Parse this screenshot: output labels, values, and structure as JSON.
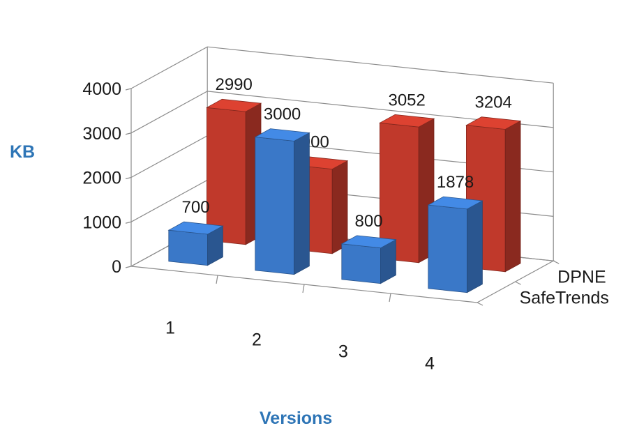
{
  "chart_data": {
    "type": "bar",
    "subtype": "3d-clustered-column",
    "title": "",
    "xlabel": "Versions",
    "ylabel": "KB",
    "categories": [
      "1",
      "2",
      "3",
      "4"
    ],
    "series": [
      {
        "name": "DPNE",
        "values": [
          2990,
          1900,
          3052,
          3204
        ],
        "color": "#c0392b"
      },
      {
        "name": "SafeTrends",
        "values": [
          700,
          3000,
          800,
          1878
        ],
        "color": "#3a78c8"
      }
    ],
    "ylim": [
      0,
      4000
    ],
    "yticks": [
      "0",
      "1000",
      "2000",
      "3000",
      "4000"
    ],
    "grid": true,
    "legend": "depth-axis-right"
  }
}
